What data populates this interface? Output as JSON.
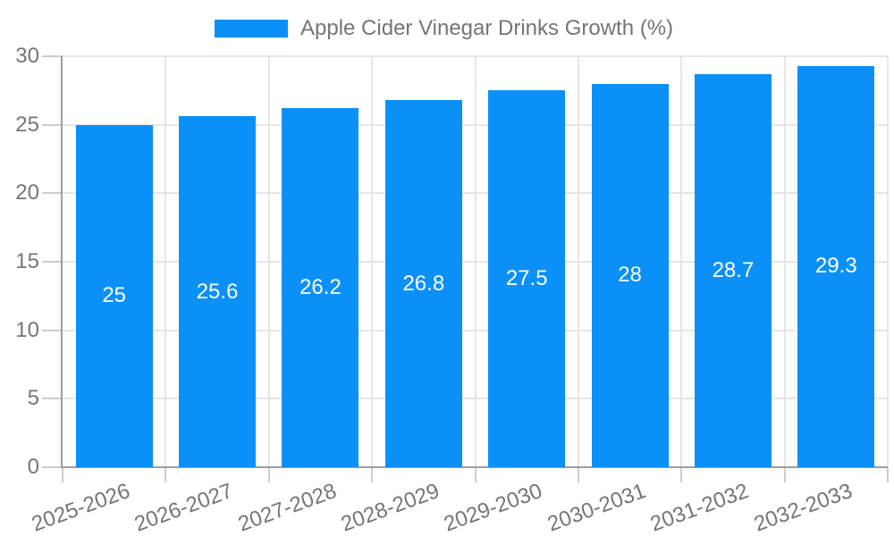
{
  "chart_data": {
    "type": "bar",
    "title": "Apple Cider Vinegar Drinks Growth (%)",
    "categories": [
      "2025-2026",
      "2026-2027",
      "2027-2028",
      "2028-2029",
      "2029-2030",
      "2030-2031",
      "2031-2032",
      "2032-2033"
    ],
    "values": [
      25,
      25.6,
      26.2,
      26.8,
      27.5,
      28,
      28.7,
      29.3
    ],
    "value_labels": [
      "25",
      "25.6",
      "26.2",
      "26.8",
      "27.5",
      "28",
      "28.7",
      "29.3"
    ],
    "xlabel": "",
    "ylabel": "",
    "ylim": [
      0,
      30
    ],
    "yticks": [
      0,
      5,
      10,
      15,
      20,
      25,
      30
    ],
    "grid": true,
    "legend_position": "top",
    "x_label_rotation_deg": -20,
    "colors": {
      "bar": "#0B90F8",
      "text": "#757575",
      "grid": "#e6e6e6",
      "tick": "#cccccc",
      "axis": "#9e9e9e",
      "value_label": "#ffffff",
      "background": "#ffffff"
    }
  }
}
